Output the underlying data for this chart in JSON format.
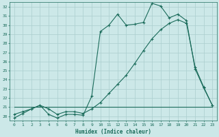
{
  "xlabel": "Humidex (Indice chaleur)",
  "background_color": "#cce8e8",
  "grid_color": "#aacece",
  "line_color": "#1a6b5a",
  "xlim": [
    -0.5,
    23.5
  ],
  "ylim": [
    19.5,
    32.5
  ],
  "xticks": [
    0,
    1,
    2,
    3,
    4,
    5,
    6,
    7,
    8,
    9,
    10,
    11,
    12,
    13,
    14,
    15,
    16,
    17,
    18,
    19,
    20,
    21,
    22,
    23
  ],
  "yticks": [
    20,
    21,
    22,
    23,
    24,
    25,
    26,
    27,
    28,
    29,
    30,
    31,
    32
  ],
  "series1_x": [
    0,
    1,
    2,
    3,
    4,
    5,
    6,
    7,
    8,
    9,
    10,
    11,
    12,
    13,
    14,
    15,
    16,
    17,
    18,
    19,
    20,
    21,
    22,
    23
  ],
  "series1_y": [
    19.8,
    20.3,
    20.8,
    21.2,
    20.2,
    19.8,
    20.2,
    20.2,
    20.1,
    22.2,
    29.3,
    30.0,
    31.2,
    30.0,
    30.1,
    30.3,
    32.4,
    32.1,
    30.8,
    31.2,
    30.5,
    25.2,
    23.1,
    21.2
  ],
  "series2_x": [
    0,
    1,
    2,
    3,
    4,
    5,
    6,
    7,
    8,
    9,
    10,
    11,
    12,
    13,
    14,
    15,
    16,
    17,
    18,
    19,
    20,
    21,
    22,
    23
  ],
  "series2_y": [
    20.2,
    20.5,
    20.8,
    21.2,
    20.8,
    20.2,
    20.5,
    20.5,
    20.3,
    20.8,
    21.5,
    22.5,
    23.5,
    24.5,
    25.8,
    27.2,
    28.5,
    29.5,
    30.2,
    30.6,
    30.2,
    25.4,
    23.2,
    21.2
  ],
  "series3_x": [
    0,
    1,
    2,
    3,
    4,
    5,
    6,
    7,
    8,
    9,
    10,
    11,
    12,
    13,
    14,
    15,
    16,
    17,
    18,
    19,
    20,
    21,
    22,
    23
  ],
  "series3_y": [
    21.0,
    21.0,
    21.0,
    21.0,
    21.0,
    21.0,
    21.0,
    21.0,
    21.0,
    21.0,
    21.0,
    21.0,
    21.0,
    21.0,
    21.0,
    21.0,
    21.0,
    21.0,
    21.0,
    21.0,
    21.0,
    21.0,
    21.0,
    21.0
  ]
}
